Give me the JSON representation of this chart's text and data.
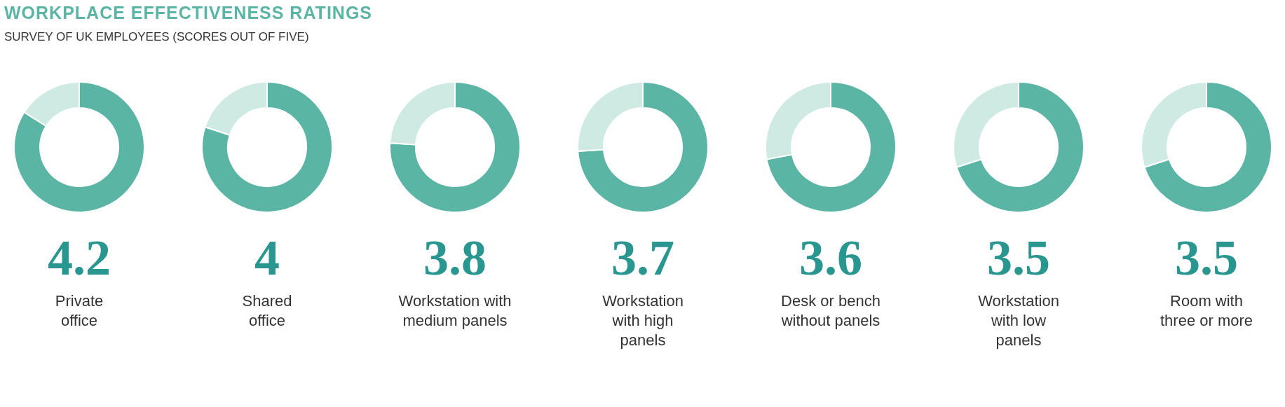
{
  "chart_data": [
    {
      "type": "donut",
      "title": "WORKPLACE EFFECTIVENESS RATINGS",
      "subtitle": "SURVEY OF UK EMPLOYEES (SCORES OUT OF FIVE)",
      "categories": [
        null,
        null
      ],
      "values": [
        4.2,
        0.8
      ],
      "colors": [
        "#5ab5a4",
        "#cfe9e3"
      ],
      "value_labels": [
        "4.2",
        null
      ],
      "xlabel": "Private\noffice"
    },
    {
      "type": "donut",
      "categories": [
        null,
        null
      ],
      "values": [
        4,
        1
      ],
      "colors": [
        "#5ab5a4",
        "#cfe9e3"
      ],
      "value_labels": [
        "4",
        null
      ],
      "xlabel": "Shared\noffice"
    },
    {
      "type": "donut",
      "categories": [
        null,
        null
      ],
      "values": [
        3.8,
        1.2
      ],
      "colors": [
        "#5ab5a4",
        "#cfe9e3"
      ],
      "value_labels": [
        "3.8",
        null
      ],
      "xlabel": "Workstation with\nmedium panels"
    },
    {
      "type": "donut",
      "categories": [
        null,
        null
      ],
      "values": [
        3.7,
        1.3
      ],
      "colors": [
        "#5ab5a4",
        "#cfe9e3"
      ],
      "value_labels": [
        "3.7",
        null
      ],
      "xlabel": "Workstation\nwith high\npanels"
    },
    {
      "type": "donut",
      "categories": [
        null,
        null
      ],
      "values": [
        3.6,
        1.4
      ],
      "colors": [
        "#5ab5a4",
        "#cfe9e3"
      ],
      "value_labels": [
        "3.6",
        null
      ],
      "xlabel": "Desk or bench\nwithout panels"
    },
    {
      "type": "donut",
      "categories": [
        null,
        null
      ],
      "values": [
        3.5,
        1.5
      ],
      "colors": [
        "#5ab5a4",
        "#cfe9e3"
      ],
      "value_labels": [
        "3.5",
        null
      ],
      "xlabel": "Workstation\nwith low\npanels"
    },
    {
      "type": "donut",
      "categories": [
        null,
        null
      ],
      "values": [
        3.5,
        1.5
      ],
      "colors": [
        "#5ab5a4",
        "#cfe9e3"
      ],
      "value_labels": [
        "3.5",
        null
      ],
      "xlabel": "Room with\nthree or more"
    }
  ]
}
